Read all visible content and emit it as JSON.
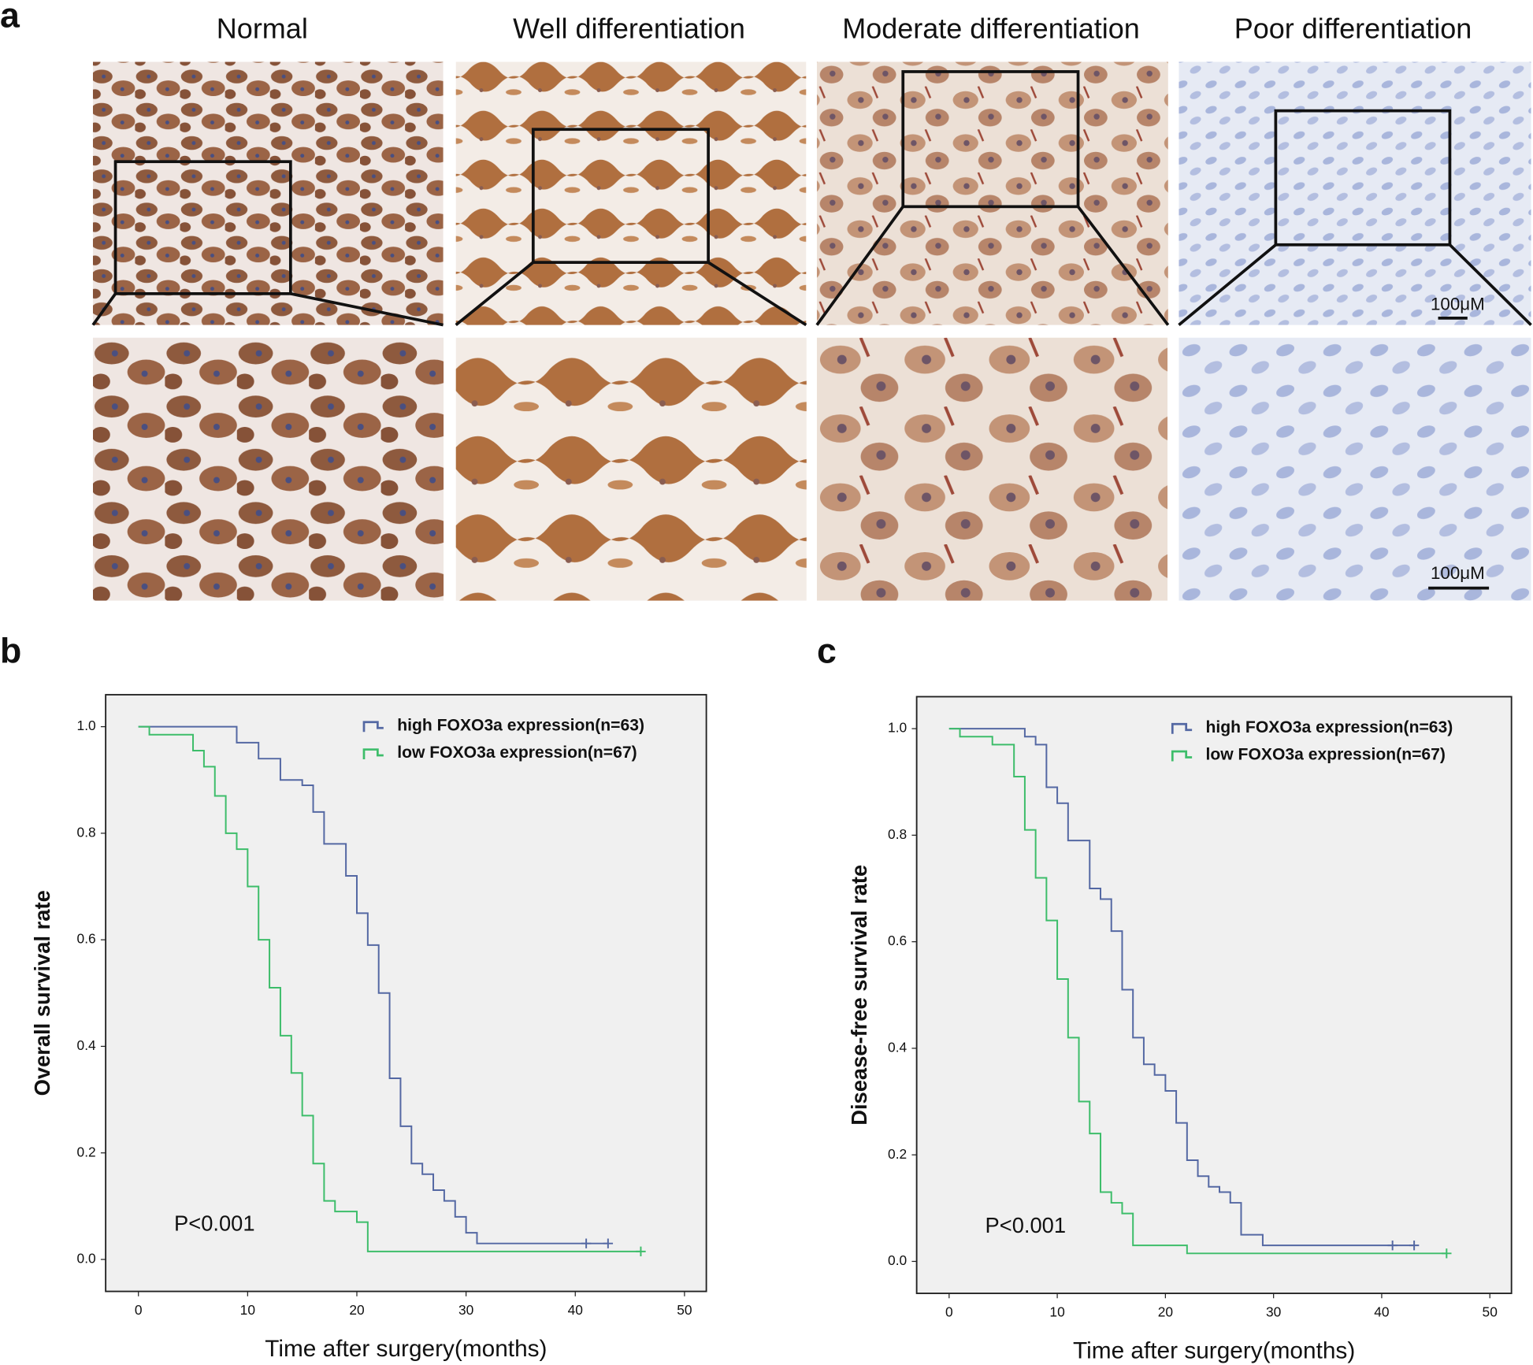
{
  "panel_a": {
    "label": "a",
    "columns": [
      "Normal",
      "Well differentiation",
      "Moderate differentiation",
      "Poor differentiation"
    ],
    "scale_bars": [
      "100μM",
      "100μM"
    ]
  },
  "chart_data": [
    {
      "type": "step",
      "panel_label": "b",
      "ylabel": "Overall  survival  rate",
      "xlabel": "Time after surgery(months)",
      "annotation": "P<0.001",
      "legend": "top-right",
      "xlim": [
        -3,
        52
      ],
      "ylim": [
        -0.06,
        1.06
      ],
      "xticks": [
        0,
        10,
        20,
        30,
        40,
        50
      ],
      "yticks": [
        {
          "value": 0,
          "label": "0.0"
        },
        {
          "value": 0.2,
          "label": "0.2"
        },
        {
          "value": 0.4,
          "label": "0.4"
        },
        {
          "value": 0.6,
          "label": "0.6"
        },
        {
          "value": 0.8,
          "label": "0.8"
        },
        {
          "value": 1,
          "label": "1.0"
        }
      ],
      "series": [
        {
          "name": "high FOXO3a expression(n=63)",
          "color": "#5468a3",
          "x": [
            0,
            9,
            11,
            13,
            15,
            16,
            17,
            19,
            20,
            21,
            22,
            23,
            24,
            25,
            26,
            27,
            28,
            29,
            30,
            31,
            43
          ],
          "values": [
            1,
            0.97,
            0.94,
            0.9,
            0.89,
            0.84,
            0.78,
            0.72,
            0.65,
            0.59,
            0.5,
            0.34,
            0.25,
            0.18,
            0.16,
            0.13,
            0.11,
            0.08,
            0.05,
            0.03,
            0.03
          ],
          "censor_x": [
            41,
            43
          ],
          "censor_values": [
            0.03,
            0.03
          ]
        },
        {
          "name": "low FOXO3a expression(n=67)",
          "color": "#3dbd6a",
          "x": [
            0,
            1,
            5,
            6,
            7,
            8,
            9,
            10,
            11,
            12,
            13,
            14,
            15,
            16,
            17,
            18,
            20,
            21,
            46
          ],
          "values": [
            1,
            0.985,
            0.955,
            0.925,
            0.87,
            0.8,
            0.77,
            0.7,
            0.6,
            0.51,
            0.42,
            0.35,
            0.27,
            0.18,
            0.11,
            0.09,
            0.07,
            0.015,
            0.015
          ],
          "censor_x": [
            46
          ],
          "censor_values": [
            0.015
          ]
        }
      ]
    },
    {
      "type": "step",
      "panel_label": "c",
      "ylabel": "Disease-free  survival  rate",
      "xlabel": "Time after surgery(months)",
      "annotation": "P<0.001",
      "legend": "top-right",
      "xlim": [
        -3,
        52
      ],
      "ylim": [
        -0.06,
        1.06
      ],
      "xticks": [
        0,
        10,
        20,
        30,
        40,
        50
      ],
      "yticks": [
        {
          "value": 0,
          "label": "0.0"
        },
        {
          "value": 0.2,
          "label": "0.2"
        },
        {
          "value": 0.4,
          "label": "0.4"
        },
        {
          "value": 0.6,
          "label": "0.6"
        },
        {
          "value": 0.8,
          "label": "0.8"
        },
        {
          "value": 1,
          "label": "1.0"
        }
      ],
      "series": [
        {
          "name": "high FOXO3a expression(n=63)",
          "color": "#5468a3",
          "x": [
            0,
            7,
            8,
            9,
            10,
            11,
            13,
            14,
            15,
            16,
            17,
            18,
            19,
            20,
            21,
            22,
            23,
            24,
            25,
            26,
            27,
            29,
            43
          ],
          "values": [
            1,
            0.985,
            0.97,
            0.89,
            0.86,
            0.79,
            0.7,
            0.68,
            0.62,
            0.51,
            0.42,
            0.37,
            0.35,
            0.32,
            0.26,
            0.19,
            0.16,
            0.14,
            0.13,
            0.11,
            0.05,
            0.03,
            0.03
          ],
          "censor_x": [
            41,
            43
          ],
          "censor_values": [
            0.03,
            0.03
          ]
        },
        {
          "name": "low FOXO3a expression(n=67)",
          "color": "#3dbd6a",
          "x": [
            0,
            1,
            4,
            6,
            7,
            8,
            9,
            10,
            11,
            12,
            13,
            14,
            15,
            16,
            17,
            22,
            46
          ],
          "values": [
            1,
            0.985,
            0.97,
            0.91,
            0.81,
            0.72,
            0.64,
            0.53,
            0.42,
            0.3,
            0.24,
            0.13,
            0.11,
            0.09,
            0.03,
            0.015,
            0.015
          ],
          "censor_x": [
            46
          ],
          "censor_values": [
            0.015
          ]
        }
      ]
    }
  ]
}
